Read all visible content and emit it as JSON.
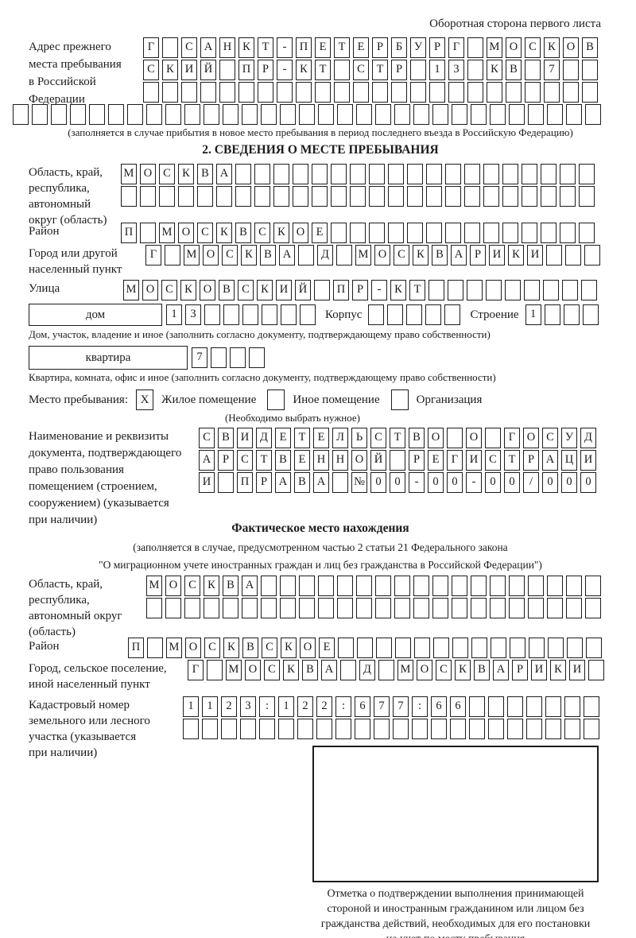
{
  "page": {
    "header_note": "Оборотная сторона первого листа"
  },
  "colors": {
    "ink": "#1c1c1c",
    "paper": "#ffffff"
  },
  "prev_address": {
    "label_lines": [
      "Адрес прежнего",
      "места пребывания",
      "в Российской",
      "Федерации"
    ],
    "rows": [
      {
        "len": 24,
        "text": "Г САНКТ-ПЕТЕРБУРГ МОСКОВ"
      },
      {
        "len": 24,
        "text": "СКИЙ ПР-КТ СТР 13 КВ 7"
      },
      {
        "len": 24,
        "text": ""
      }
    ],
    "full_row": {
      "len": 31,
      "text": ""
    },
    "note": "(заполняется в случае прибытия в новое место пребывания в период последнего въезда в Российскую Федерацию)"
  },
  "section2": {
    "title": "2. СВЕДЕНИЯ О МЕСТЕ ПРЕБЫВАНИЯ",
    "region": {
      "label_lines": [
        "Область, край,",
        "республика,",
        "автономный",
        "округ (область)"
      ],
      "rows": [
        {
          "len": 25,
          "text": "МОСКВА"
        },
        {
          "len": 25,
          "text": ""
        }
      ]
    },
    "district": {
      "label": "Район",
      "row": {
        "len": 25,
        "text": "П МОСКВСКОЕ"
      }
    },
    "city": {
      "label_lines": [
        "Город или другой",
        "населенный пункт"
      ],
      "row": {
        "len": 24,
        "text": "Г МОСКВА Д МОСКВАРИКИ"
      }
    },
    "street": {
      "label": "Улица",
      "row": {
        "len": 25,
        "text": "МОСКОВСКИЙ ПР-КТ"
      }
    },
    "house": {
      "box_label": "дом",
      "cells": {
        "len": 8,
        "text": "13"
      },
      "korpus_label": "Корпус",
      "korpus_cells": {
        "len": 5,
        "text": ""
      },
      "stroenie_label": "Строение",
      "stroenie_cells": {
        "len": 4,
        "text": "1"
      },
      "note": "Дом, участок, владение и иное (заполнить согласно документу, подтверждающему право собственности)"
    },
    "apartment": {
      "box_label": "квартира",
      "cells": {
        "len": 4,
        "text": "7"
      },
      "note": "Квартира, комната, офис и иное (заполнить согласно документу, подтверждающему право собственности)"
    },
    "stay_type": {
      "label": "Место пребывания:",
      "options": [
        {
          "label": "Жилое помещение",
          "checked": "X"
        },
        {
          "label": "Иное помещение",
          "checked": ""
        },
        {
          "label": "Организация",
          "checked": ""
        }
      ],
      "note": "(Необходимо выбрать нужное)"
    },
    "document": {
      "label_lines": [
        "Наименование и реквизиты",
        "документа, подтверждающего",
        "право пользования",
        "помещением (строением,",
        "сооружением) (указывается",
        "при наличии)"
      ],
      "rows": [
        {
          "len": 21,
          "text": "СВИДЕТЕЛЬСТВО О ГОСУД"
        },
        {
          "len": 21,
          "text": "АРСТВЕННОЙ РЕГИСТРАЦИ"
        },
        {
          "len": 21,
          "text": "И ПРАВА №00-00-00/000"
        }
      ]
    }
  },
  "fact": {
    "header": "Фактическое место нахождения",
    "notes": [
      "(заполняется в случае, предусмотренном частью 2 статьи 21 Федерального закона",
      "\"О миграционном учете иностранных граждан и лиц без гражданства в Российской Федерации\")"
    ],
    "region": {
      "label_lines": [
        "Область, край,",
        "республика,",
        "автономный округ",
        "(область)"
      ],
      "rows": [
        {
          "len": 24,
          "text": "МОСКВА"
        },
        {
          "len": 24,
          "text": ""
        }
      ]
    },
    "district": {
      "label": "Район",
      "row": {
        "len": 25,
        "text": "П МОСКВСКОЕ"
      }
    },
    "city": {
      "label_lines": [
        "Город, сельское поселение,",
        "иной населенный пункт"
      ],
      "row": {
        "len": 22,
        "text": "Г МОСКВА Д МОСКВАРИКИ"
      }
    },
    "cadastre": {
      "label_lines": [
        "Кадастровый номер",
        "земельного или лесного",
        "участка (указывается",
        "при наличии)"
      ],
      "rows": [
        {
          "len": 22,
          "text": "1123:122:677:66"
        },
        {
          "len": 22,
          "text": ""
        }
      ]
    },
    "stamp_note_lines": [
      "Отметка о подтверждении выполнения принимающей",
      "стороной и иностранным гражданином или лицом без",
      "гражданства действий, необходимых для его постановки",
      "на учет по месту пребывания"
    ]
  }
}
